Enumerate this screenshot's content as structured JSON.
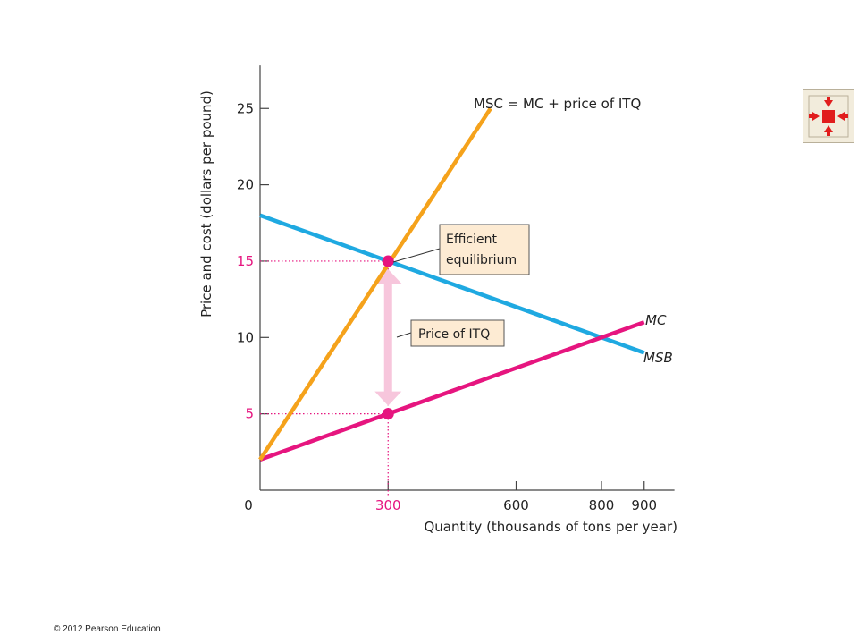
{
  "chart_data": {
    "type": "line",
    "xlabel": "Quantity (thousands of tons per year)",
    "ylabel": "Price and cost (dollars per pound)",
    "xlim": [
      0,
      950
    ],
    "ylim": [
      0,
      27
    ],
    "x_ticks": [
      "0",
      "300",
      "600",
      "800",
      "900"
    ],
    "x_tick_values": [
      0,
      300,
      600,
      800,
      900
    ],
    "y_ticks": [
      "5",
      "10",
      "15",
      "20",
      "25"
    ],
    "y_tick_values": [
      5,
      10,
      15,
      20,
      25
    ],
    "highlight_ticks": {
      "x": [
        "300"
      ],
      "y": [
        "5",
        "15"
      ]
    },
    "series": [
      {
        "name": "MSC = MC + price of ITQ",
        "color": "#f5a21b",
        "points": [
          [
            0,
            2
          ],
          [
            540,
            25
          ]
        ]
      },
      {
        "name": "MSB",
        "color": "#1fa9e1",
        "points": [
          [
            0,
            18
          ],
          [
            900,
            9
          ]
        ]
      },
      {
        "name": "MC",
        "color": "#e6157f",
        "points": [
          [
            0,
            2
          ],
          [
            900,
            11
          ]
        ]
      }
    ],
    "equilibrium_points": [
      {
        "x": 300,
        "y": 15,
        "color": "#e6157f"
      },
      {
        "x": 300,
        "y": 5,
        "color": "#e6157f"
      }
    ],
    "annotations": {
      "efficient": [
        "Efficient",
        "equilibrium"
      ],
      "itq": "Price of ITQ"
    },
    "colors": {
      "callout_bg": "#fdebd3",
      "arrow": "#f7c6dc",
      "guide": "#e6157f",
      "axis": "#444444"
    }
  },
  "nav": {
    "icon": "collapse-arrows-icon"
  },
  "footer": {
    "copyright": "© 2012 Pearson Education"
  }
}
